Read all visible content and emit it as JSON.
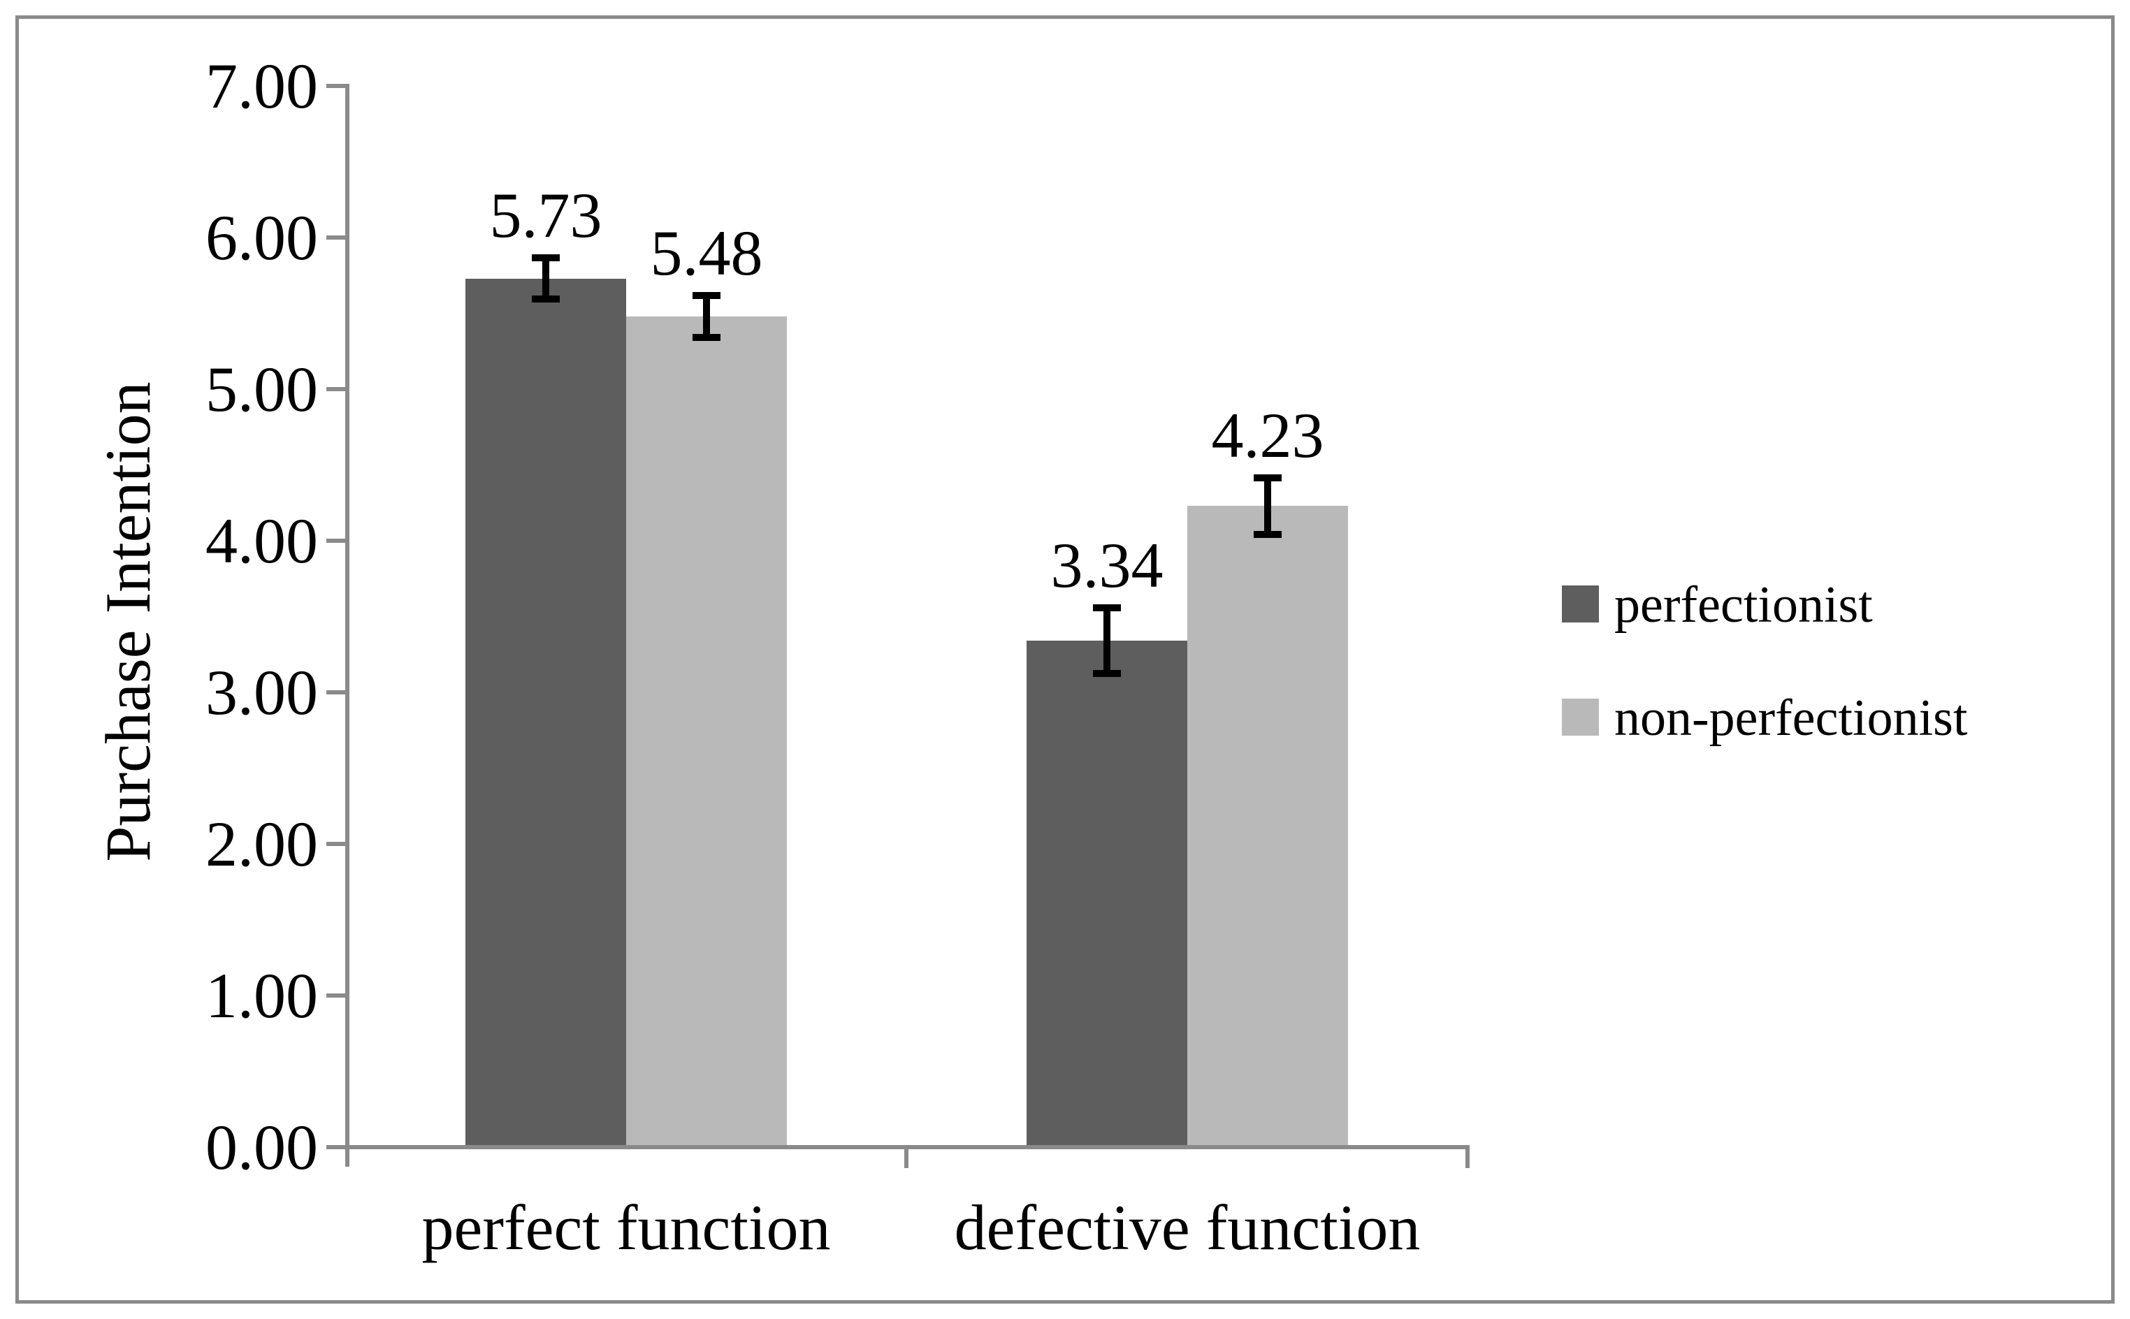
{
  "figure": {
    "background": "#ffffff",
    "border_color": "#8a8a8a"
  },
  "chart_data": {
    "type": "bar",
    "title": "",
    "xlabel": "",
    "ylabel": "Purchase Intention",
    "categories": [
      "perfect function",
      "defective function"
    ],
    "series": [
      {
        "name": "perfectionist",
        "color": "#5e5e5e",
        "values": [
          5.73,
          3.34
        ],
        "errors": [
          0.16,
          0.24
        ],
        "data_labels": [
          "5.73",
          "3.34"
        ]
      },
      {
        "name": "non-perfectionist",
        "color": "#b9b9b9",
        "values": [
          5.48,
          4.23
        ],
        "errors": [
          0.16,
          0.21
        ],
        "data_labels": [
          "5.48",
          "4.23"
        ]
      }
    ],
    "ylim": [
      0,
      7
    ],
    "ytick_step": 1,
    "ytick_labels": [
      "0.00",
      "1.00",
      "2.00",
      "3.00",
      "4.00",
      "5.00",
      "6.00",
      "7.00"
    ],
    "grid": false,
    "legend_position": "right",
    "axis_color": "#8a8a8a",
    "error_bar_color": "#000000",
    "text_color": "#000000"
  }
}
